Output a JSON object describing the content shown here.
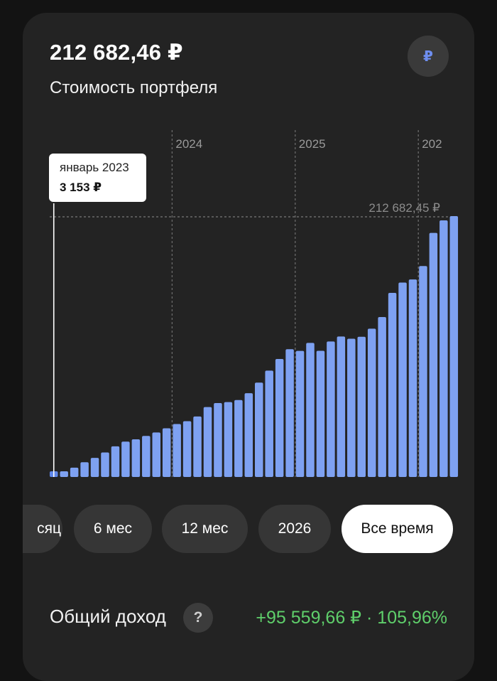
{
  "portfolio": {
    "value": "212 682,46 ₽",
    "title": "Стоимость портфеля",
    "currency_symbol": "₽"
  },
  "tooltip": {
    "date": "январь 2023",
    "value": "3 153 ₽"
  },
  "periods": [
    {
      "label": "сяц",
      "active": false
    },
    {
      "label": "6 мес",
      "active": false
    },
    {
      "label": "12 мес",
      "active": false
    },
    {
      "label": "2026",
      "active": false
    },
    {
      "label": "Все время",
      "active": true
    }
  ],
  "income": {
    "label": "Общий доход",
    "help_icon": "?",
    "value": "+95 559,66 ₽ · 105,96%"
  },
  "colors": {
    "bar": "#7ea1f1",
    "bar_highlight": "#5f86e8",
    "gain": "#5fcf6b",
    "card": "#232323"
  },
  "chart_data": {
    "type": "bar",
    "x_start": "январь 2023",
    "year_labels": [
      "2024",
      "2025",
      "202"
    ],
    "year_label_positions": [
      12,
      24,
      36
    ],
    "max_label": "212 682,45 ₽",
    "max_value": 212682.45,
    "selected_index": 0,
    "values": [
      3153,
      4300,
      7600,
      12000,
      15600,
      20000,
      25000,
      28800,
      30700,
      33500,
      36300,
      39700,
      43200,
      45500,
      49300,
      57000,
      60300,
      61100,
      62700,
      68300,
      76900,
      86700,
      96200,
      104200,
      102800,
      109300,
      102900,
      110500,
      114500,
      112700,
      114300,
      120900,
      130400,
      150100,
      158500,
      161000,
      172000,
      199000,
      209200,
      212682.45
    ]
  }
}
